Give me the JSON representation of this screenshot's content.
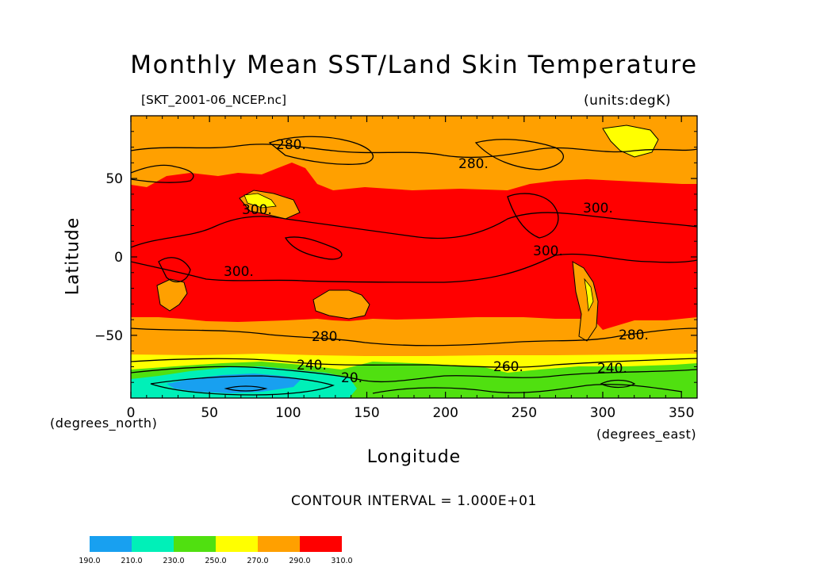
{
  "title": "Monthly Mean SST/Land Skin Temperature",
  "file_label": "[SKT_2001-06_NCEP.nc]",
  "units_label": "(units:degK)",
  "y_axis_label": "Latitude",
  "x_axis_label": "Longitude",
  "y_units": "(degrees_north)",
  "x_units": "(degrees_east)",
  "contour_interval": "CONTOUR INTERVAL = 1.000E+01",
  "colors": {
    "190-210": "#18a0f0",
    "210-230": "#00f0b8",
    "230-250": "#50e010",
    "250-270": "#ffff00",
    "270-290": "#ffa000",
    "290-310": "#ff0000"
  },
  "chart_data": {
    "type": "heatmap",
    "title": "Monthly Mean SST/Land Skin Temperature",
    "xlabel": "Longitude",
    "ylabel": "Latitude",
    "xlim": [
      0,
      360
    ],
    "ylim": [
      -90,
      90
    ],
    "x_ticks": [
      "0",
      "50",
      "100",
      "150",
      "200",
      "250",
      "300",
      "350"
    ],
    "y_ticks": [
      "50",
      "0",
      "−50"
    ],
    "x_tick_values": [
      0,
      50,
      100,
      150,
      200,
      250,
      300,
      350
    ],
    "y_tick_values": [
      50,
      0,
      -50
    ],
    "contour_labels": [
      "280.",
      "280.",
      "300.",
      "300.",
      "300.",
      "300.",
      "280.",
      "280.",
      "240.",
      "20.",
      "260.",
      "240."
    ],
    "colorbar": {
      "levels": [
        "190.0",
        "210.0",
        "230.0",
        "250.0",
        "270.0",
        "290.0",
        "310.0"
      ],
      "colors": [
        "#18a0f0",
        "#00f0b8",
        "#50e010",
        "#ffff00",
        "#ffa000",
        "#ff0000"
      ]
    }
  }
}
